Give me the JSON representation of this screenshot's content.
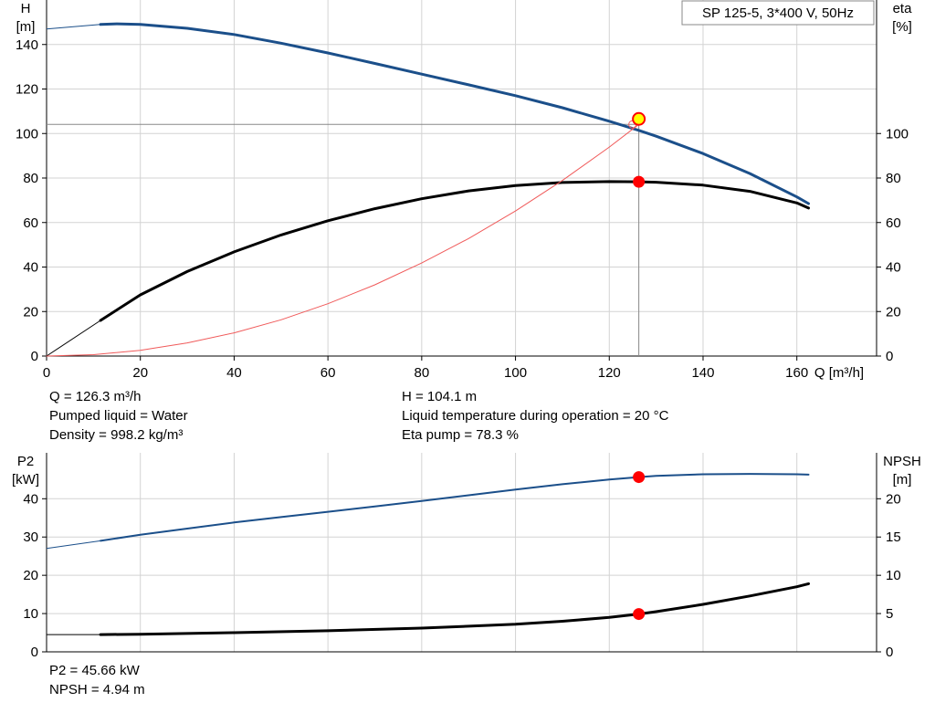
{
  "colors": {
    "grid": "#d3d3d3",
    "blue": "#1b4f8a",
    "black": "#000000",
    "red_curve": "#f05a5a",
    "point": "#ff0000",
    "duty_fill": "#ffff00",
    "duty_stroke": "#ff0000"
  },
  "chart_data": [
    {
      "type": "line",
      "name": "top",
      "title": "SP 125-5, 3*400 V, 50Hz",
      "xlabel": "Q [m³/h]",
      "ylabel_left": [
        "H",
        "[m]"
      ],
      "ylabel_right": [
        "eta",
        "[%]"
      ],
      "xlim": [
        0,
        177
      ],
      "ylim_left": [
        0,
        160
      ],
      "ylim_right": [
        0,
        160
      ],
      "xticks": [
        0,
        20,
        40,
        60,
        80,
        100,
        120,
        140,
        160
      ],
      "yticks_left": [
        0,
        20,
        40,
        60,
        80,
        100,
        120,
        140
      ],
      "yticks_right": [
        0,
        20,
        40,
        60,
        80,
        100
      ],
      "grid": true,
      "series": [
        {
          "role": "head",
          "axis": "left",
          "color": "blue",
          "x": [
            11.5,
            15,
            20,
            30,
            40,
            50,
            60,
            70,
            80,
            90,
            100,
            110,
            120,
            126.3,
            130,
            140,
            150,
            160,
            162.5
          ],
          "y": [
            149,
            149.3,
            149,
            147.3,
            144.5,
            140.6,
            136.2,
            131.5,
            126.7,
            121.9,
            117,
            111.6,
            105.5,
            101.4,
            98.8,
            91,
            82,
            71.5,
            68.5
          ],
          "ext_x": [
            0,
            11.5
          ],
          "ext_y": [
            147,
            149
          ]
        },
        {
          "role": "efficiency",
          "axis": "right",
          "color": "black",
          "x": [
            11.5,
            20,
            30,
            40,
            50,
            60,
            70,
            80,
            90,
            100,
            110,
            120,
            126.3,
            130,
            140,
            150,
            160,
            162.5
          ],
          "y": [
            16,
            27.5,
            38,
            46.8,
            54.4,
            60.8,
            66.2,
            70.7,
            74.2,
            76.6,
            78,
            78.4,
            78.3,
            78.1,
            76.8,
            74,
            68.8,
            66.5
          ],
          "ext_x": [
            0,
            11.5
          ],
          "ext_y": [
            0,
            16
          ]
        },
        {
          "role": "system-curve",
          "axis": "left",
          "color": "red_curve",
          "x": [
            0,
            10,
            20,
            30,
            40,
            50,
            60,
            70,
            80,
            90,
            100,
            110,
            120,
            126.3
          ],
          "y": [
            0,
            0.6,
            2.6,
            5.9,
            10.4,
            16.3,
            23.5,
            32,
            41.8,
            52.8,
            65.2,
            78.9,
            93.9,
            104.1
          ]
        }
      ],
      "operating_point": {
        "x": 126.3,
        "H": 104.1,
        "eta": 78.3,
        "H_curve_x": 123.8
      }
    },
    {
      "type": "line",
      "name": "bottom",
      "ylabel_left": [
        "P2",
        "[kW]"
      ],
      "ylabel_right": [
        "NPSH",
        "[m]"
      ],
      "xlim": [
        0,
        177
      ],
      "ylim_left": [
        0,
        52
      ],
      "ylim_right": [
        0,
        26
      ],
      "yticks_left": [
        0,
        10,
        20,
        30,
        40
      ],
      "yticks_right": [
        0,
        5,
        10,
        15,
        20
      ],
      "grid": true,
      "series": [
        {
          "role": "power",
          "axis": "left",
          "color": "blue",
          "x": [
            11.5,
            20,
            30,
            40,
            50,
            60,
            70,
            80,
            90,
            100,
            110,
            120,
            126.3,
            130,
            140,
            150,
            160,
            162.5
          ],
          "y": [
            29,
            30.6,
            32.2,
            33.8,
            35.2,
            36.6,
            38,
            39.4,
            40.9,
            42.4,
            43.8,
            45,
            45.66,
            46,
            46.4,
            46.5,
            46.4,
            46.3
          ],
          "ext_x": [
            0,
            11.5
          ],
          "ext_y": [
            27,
            29
          ]
        },
        {
          "role": "npsh",
          "axis": "right",
          "color": "black",
          "x": [
            11.5,
            20,
            40,
            60,
            80,
            100,
            110,
            120,
            126.3,
            130,
            140,
            150,
            160,
            162.5
          ],
          "y": [
            2.25,
            2.3,
            2.5,
            2.75,
            3.1,
            3.6,
            4,
            4.5,
            4.94,
            5.25,
            6.2,
            7.3,
            8.5,
            8.9
          ],
          "ext_x": [
            0,
            11.5
          ],
          "ext_y": [
            2.25,
            2.25
          ]
        }
      ],
      "operating_point": {
        "x": 126.3,
        "P2": 45.66,
        "NPSH": 4.94
      }
    }
  ],
  "info_top": {
    "q": "Q = 126.3 m³/h",
    "liquid": "Pumped liquid = Water",
    "density": "Density = 998.2 kg/m³",
    "h": "H = 104.1 m",
    "temperature": "Liquid temperature during operation = 20 °C",
    "eta": "Eta pump = 78.3 %"
  },
  "info_bottom": {
    "p2": "P2 = 45.66 kW",
    "npsh": "NPSH = 4.94 m"
  }
}
